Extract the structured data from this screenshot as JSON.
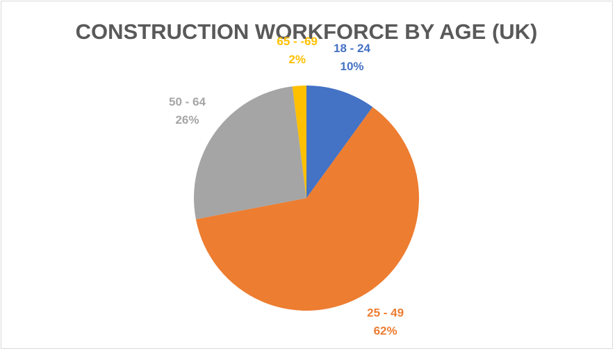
{
  "chart_data": {
    "type": "pie",
    "title": "CONSTRUCTION WORKFORCE BY AGE (UK)",
    "categories": [
      "18 - 24",
      "25 - 49",
      "50 - 64",
      "65 - -69"
    ],
    "values": [
      10,
      62,
      26,
      2
    ],
    "value_labels": [
      "10%",
      "62%",
      "26%",
      "2%"
    ],
    "colors": [
      "#4472c4",
      "#ed7d31",
      "#a5a5a5",
      "#ffc000"
    ]
  }
}
